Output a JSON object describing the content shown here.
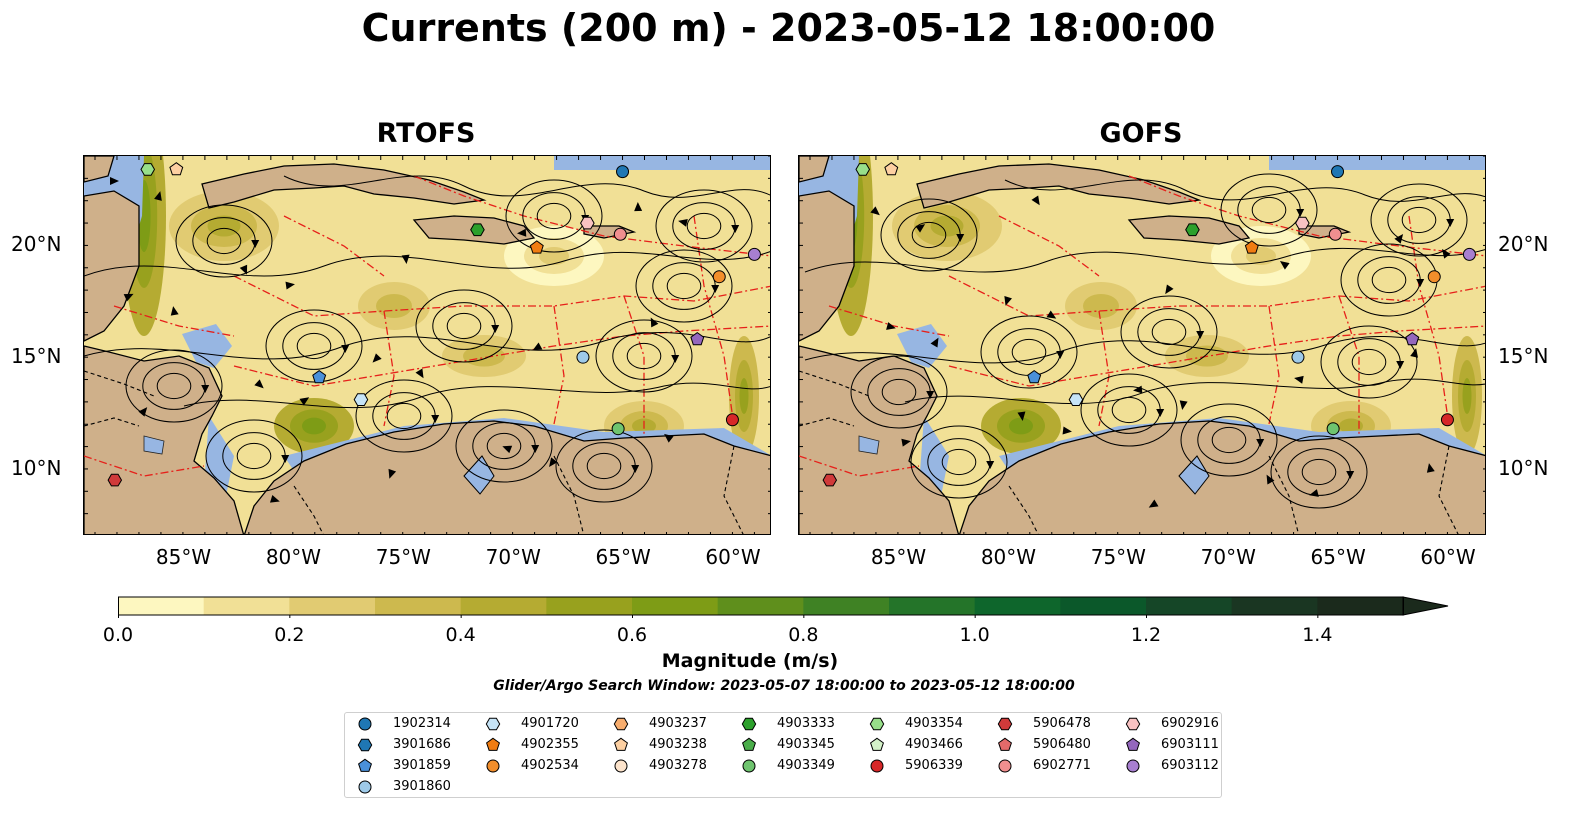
{
  "title": "Currents (200 m) - 2023-05-12 18:00:00",
  "panels": [
    {
      "id": "rtofs",
      "title": "RTOFS",
      "lat_side": "left"
    },
    {
      "id": "gofs",
      "title": "GOFS",
      "lat_side": "right"
    }
  ],
  "map_extent": {
    "lon": [
      -89.5,
      -58.2
    ],
    "lat": [
      7.0,
      24.0
    ]
  },
  "lon_ticks": [
    {
      "value": -85,
      "label": "85°W"
    },
    {
      "value": -80,
      "label": "80°W"
    },
    {
      "value": -75,
      "label": "75°W"
    },
    {
      "value": -70,
      "label": "70°W"
    },
    {
      "value": -65,
      "label": "65°W"
    },
    {
      "value": -60,
      "label": "60°W"
    }
  ],
  "lat_ticks": [
    {
      "value": 20,
      "label": "20°N"
    },
    {
      "value": 15,
      "label": "15°N"
    },
    {
      "value": 10,
      "label": "10°N"
    }
  ],
  "colors": {
    "land": "#cfb08a",
    "shelf": "#97b6e2",
    "coast": "#000000",
    "eez": "#e6201a",
    "streamline": "#000000"
  },
  "colorbar": {
    "label": "Magnitude (m/s)",
    "min": 0.0,
    "max": 1.5,
    "extend": "max",
    "ticks": [
      "0.0",
      "0.2",
      "0.4",
      "0.6",
      "0.8",
      "1.0",
      "1.2",
      "1.4"
    ],
    "tick_values": [
      0.0,
      0.2,
      0.4,
      0.6,
      0.8,
      1.0,
      1.2,
      1.4
    ],
    "levels": [
      {
        "from": 0.0,
        "color": "#fdf7c0"
      },
      {
        "from": 0.1,
        "color": "#f1e096"
      },
      {
        "from": 0.2,
        "color": "#e1cb72"
      },
      {
        "from": 0.3,
        "color": "#cdb94e"
      },
      {
        "from": 0.4,
        "color": "#b5ab32"
      },
      {
        "from": 0.5,
        "color": "#98a11e"
      },
      {
        "from": 0.6,
        "color": "#7e9c16"
      },
      {
        "from": 0.7,
        "color": "#5f8f1c"
      },
      {
        "from": 0.8,
        "color": "#3f8224"
      },
      {
        "from": 0.9,
        "color": "#247429"
      },
      {
        "from": 1.0,
        "color": "#0e662c"
      },
      {
        "from": 1.1,
        "color": "#0b582a"
      },
      {
        "from": 1.2,
        "color": "#154627"
      },
      {
        "from": 1.3,
        "color": "#1a3622"
      },
      {
        "from": 1.4,
        "color": "#1b2a1c"
      }
    ]
  },
  "search_window": "Glider/Argo Search Window: 2023-05-07 18:00:00 to 2023-05-12 18:00:00",
  "floats": [
    {
      "id": "1902314",
      "marker": "circle",
      "color": "#1f77b4",
      "lon": -65.0,
      "lat": 23.3
    },
    {
      "id": "3901686",
      "marker": "hexagon",
      "color": "#1f77b4"
    },
    {
      "id": "3901859",
      "marker": "pentagon",
      "color": "#4a90d9",
      "lon": -78.8,
      "lat": 14.1
    },
    {
      "id": "3901860",
      "marker": "circle",
      "color": "#9ecae9",
      "lon": -66.8,
      "lat": 15.0
    },
    {
      "id": "4901720",
      "marker": "hexagon",
      "color": "#c6e4f7",
      "lon": -76.9,
      "lat": 13.1
    },
    {
      "id": "4902355",
      "marker": "pentagon",
      "color": "#f07c12",
      "lon": -68.9,
      "lat": 19.9
    },
    {
      "id": "4902534",
      "marker": "circle",
      "color": "#f28e2b",
      "lon": -60.6,
      "lat": 18.6
    },
    {
      "id": "4903237",
      "marker": "hexagon",
      "color": "#f7ad6e"
    },
    {
      "id": "4903238",
      "marker": "pentagon",
      "color": "#fdd0a2",
      "lon": -85.3,
      "lat": 23.4
    },
    {
      "id": "4903278",
      "marker": "circle",
      "color": "#fde4cc"
    },
    {
      "id": "4903333",
      "marker": "hexagon",
      "color": "#2ca02c",
      "lon": -71.6,
      "lat": 20.7
    },
    {
      "id": "4903345",
      "marker": "pentagon",
      "color": "#4aae4a"
    },
    {
      "id": "4903349",
      "marker": "circle",
      "color": "#6fc46f",
      "lon": -65.2,
      "lat": 11.8
    },
    {
      "id": "4903354",
      "marker": "hexagon",
      "color": "#98df8a",
      "lon": -86.6,
      "lat": 23.4
    },
    {
      "id": "4903466",
      "marker": "pentagon",
      "color": "#d4f2c9"
    },
    {
      "id": "5906339",
      "marker": "circle",
      "color": "#d62728",
      "lon": -60.0,
      "lat": 12.2
    },
    {
      "id": "5906478",
      "marker": "hexagon",
      "color": "#d03a3a",
      "lon": -88.1,
      "lat": 9.5
    },
    {
      "id": "5906480",
      "marker": "pentagon",
      "color": "#e46a6a"
    },
    {
      "id": "6902771",
      "marker": "circle",
      "color": "#f08f8f",
      "lon": -65.1,
      "lat": 20.5
    },
    {
      "id": "6902916",
      "marker": "hexagon",
      "color": "#f8c2c2",
      "lon": -66.6,
      "lat": 21.0
    },
    {
      "id": "6903111",
      "marker": "pentagon",
      "color": "#9467bd",
      "lon": -61.6,
      "lat": 15.8
    },
    {
      "id": "6903112",
      "marker": "circle",
      "color": "#a87fd0",
      "lon": -59.0,
      "lat": 19.6
    }
  ]
}
